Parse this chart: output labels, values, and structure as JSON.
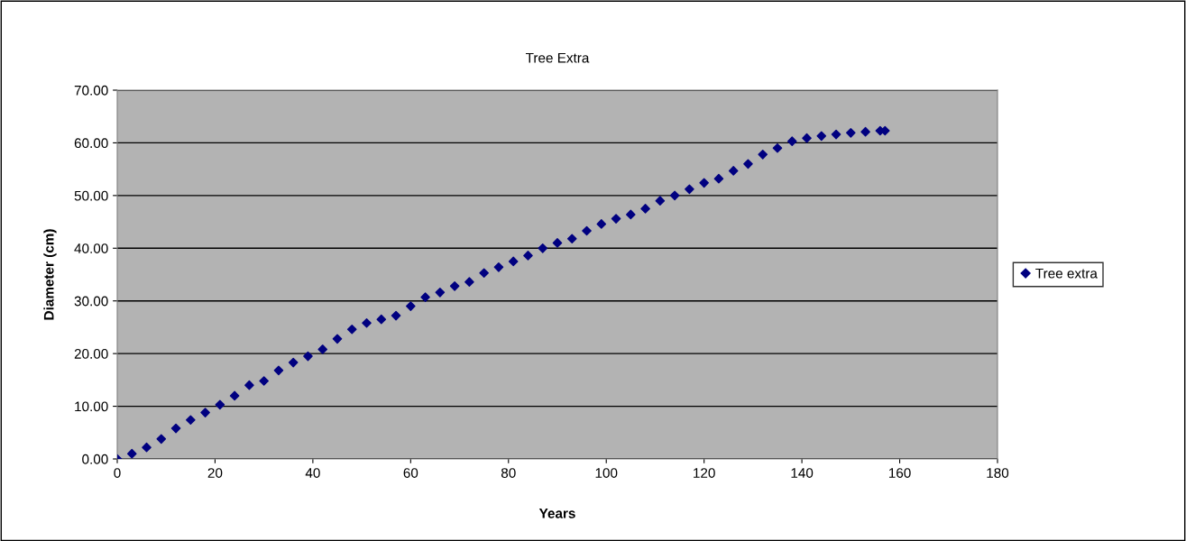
{
  "chart_data": {
    "type": "scatter",
    "title": "Tree Extra",
    "xlabel": "Years",
    "ylabel": "Diameter (cm)",
    "x": [
      0,
      3,
      6,
      9,
      12,
      15,
      18,
      21,
      24,
      27,
      30,
      33,
      36,
      39,
      42,
      45,
      48,
      51,
      54,
      57,
      60,
      63,
      66,
      69,
      72,
      75,
      78,
      81,
      84,
      87,
      90,
      93,
      96,
      99,
      102,
      105,
      108,
      111,
      114,
      117,
      120,
      123,
      126,
      129,
      132,
      135,
      138,
      141,
      144,
      147,
      150,
      153,
      156,
      157
    ],
    "series": [
      {
        "name": "Tree extra",
        "color": "#000080",
        "values": [
          0,
          1.0,
          2.2,
          3.8,
          5.8,
          7.4,
          8.8,
          10.3,
          12.0,
          14.0,
          14.8,
          16.8,
          18.3,
          19.5,
          20.8,
          22.8,
          24.6,
          25.8,
          26.5,
          27.2,
          29.0,
          30.7,
          31.6,
          32.8,
          33.6,
          35.3,
          36.4,
          37.5,
          38.6,
          40.0,
          41.0,
          41.8,
          43.3,
          44.6,
          45.6,
          46.4,
          47.5,
          49.0,
          50.0,
          51.2,
          52.4,
          53.2,
          54.7,
          56.0,
          57.8,
          59.0,
          60.3,
          60.9,
          61.3,
          61.6,
          61.9,
          62.1,
          62.3,
          62.3
        ]
      }
    ],
    "xlim": [
      0,
      180
    ],
    "xticks": [
      0,
      20,
      40,
      60,
      80,
      100,
      120,
      140,
      160,
      180
    ],
    "ylim": [
      0,
      70
    ],
    "yticks": [
      {
        "value": 0,
        "label": "0.00"
      },
      {
        "value": 10,
        "label": "10.00"
      },
      {
        "value": 20,
        "label": "20.00"
      },
      {
        "value": 30,
        "label": "30.00"
      },
      {
        "value": 40,
        "label": "40.00"
      },
      {
        "value": 50,
        "label": "50.00"
      },
      {
        "value": 60,
        "label": "60.00"
      },
      {
        "value": 70,
        "label": "70.00"
      }
    ],
    "grid": "y",
    "legend": "right",
    "marker": "diamond"
  }
}
